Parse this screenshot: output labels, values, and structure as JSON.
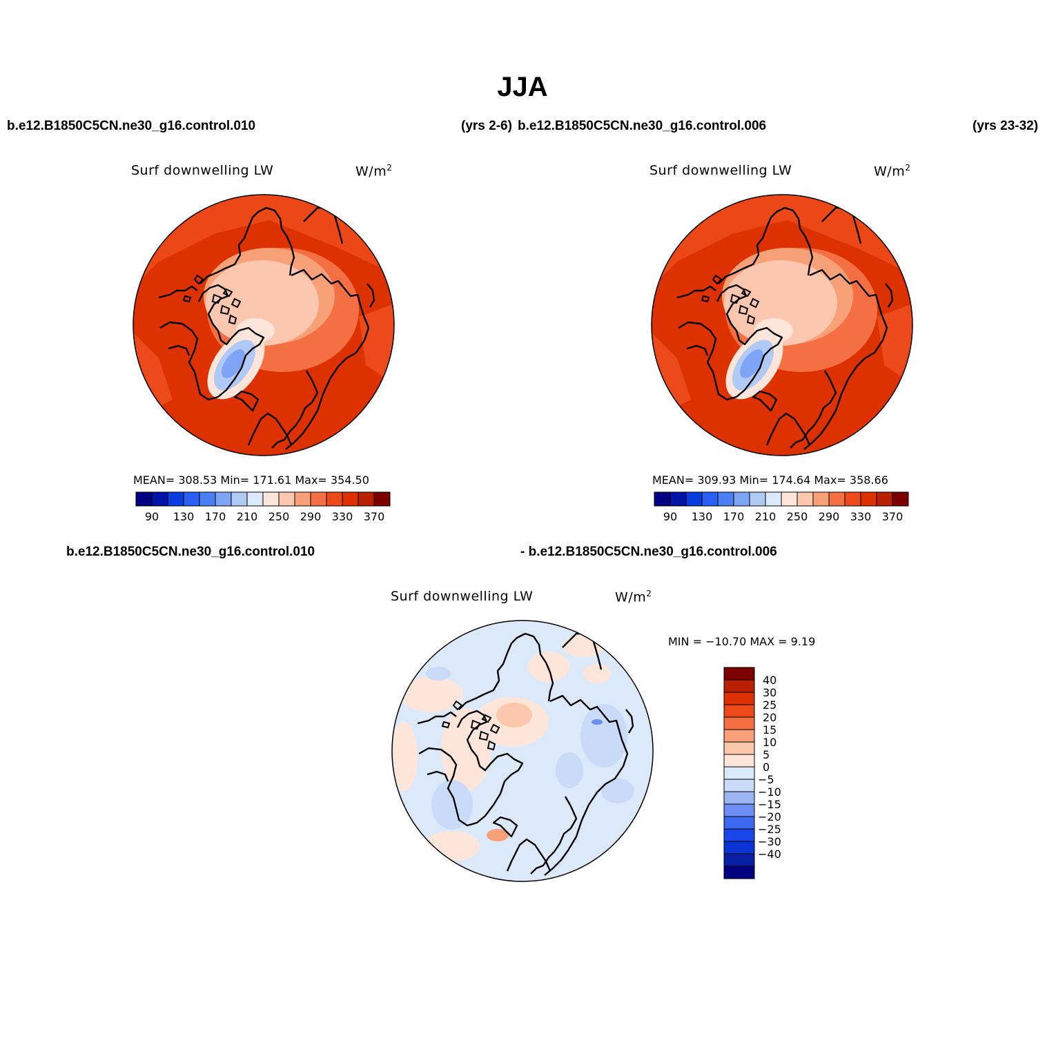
{
  "figure": {
    "title": "JJA",
    "colors": {
      "abs_levels": [
        "#000080",
        "#0014a8",
        "#0a3ce0",
        "#2b5ef5",
        "#4a7ff5",
        "#7ea4f5",
        "#b1c9f5",
        "#dce9fb",
        "#fde6d9",
        "#fbc7ae",
        "#f8a179",
        "#f46f43",
        "#ec4a1a",
        "#dd3100",
        "#b82000",
        "#7d0000"
      ],
      "diff_levels": [
        "#000080",
        "#0a1fa6",
        "#0a35d4",
        "#1947ec",
        "#3d68f0",
        "#6d8ef3",
        "#9cb5f5",
        "#c9dbf8",
        "#dce9fb",
        "#fde6d9",
        "#fbc8ad",
        "#f8a179",
        "#f46f43",
        "#ec4a1a",
        "#dd3100",
        "#b82000",
        "#7d0000"
      ]
    }
  },
  "panels": {
    "left": {
      "case_name": "b.e12.B1850C5CN.ne30_g16.control.010",
      "years": "(yrs 2-6)",
      "variable": "Surf downwelling LW",
      "units": "W/m",
      "units_sup": "2",
      "stats": "MEAN= 308.53   Min= 171.61   Max= 354.50",
      "labelbar_ticks": [
        "90",
        "130",
        "170",
        "210",
        "250",
        "290",
        "330",
        "370"
      ]
    },
    "right": {
      "case_name": "b.e12.B1850C5CN.ne30_g16.control.006",
      "years": "(yrs 23-32)",
      "variable": "Surf downwelling LW",
      "units": "W/m",
      "units_sup": "2",
      "stats": "MEAN= 309.93   Min= 174.64   Max= 358.66",
      "labelbar_ticks": [
        "90",
        "130",
        "170",
        "210",
        "250",
        "290",
        "330",
        "370"
      ]
    },
    "diff": {
      "case_a": "b.e12.B1850C5CN.ne30_g16.control.010",
      "case_b": "- b.e12.B1850C5CN.ne30_g16.control.006",
      "variable": "Surf downwelling LW",
      "units": "W/m",
      "units_sup": "2",
      "stats": "MIN = −10.70 MAX =    9.19",
      "labelbar_ticks": [
        "40",
        "30",
        "25",
        "20",
        "15",
        "10",
        "5",
        "0",
        "−5",
        "−10",
        "−15",
        "−20",
        "−25",
        "−30",
        "−40"
      ]
    }
  }
}
